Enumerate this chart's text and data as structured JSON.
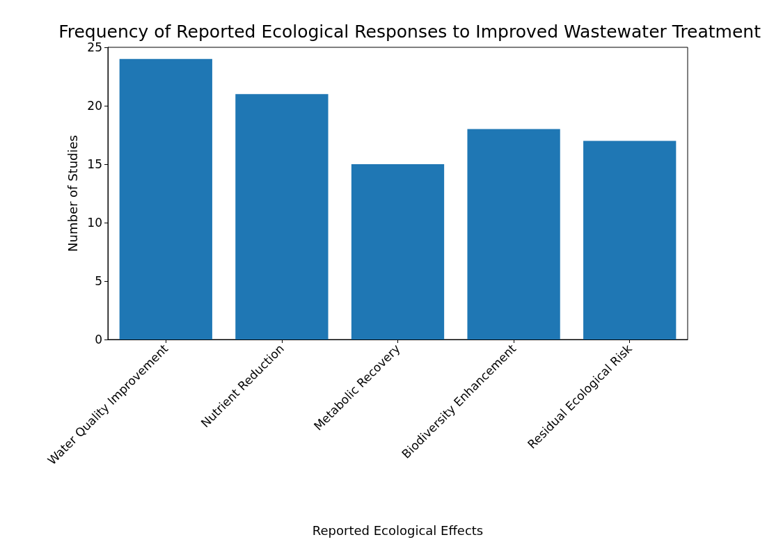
{
  "chart_data": {
    "type": "bar",
    "title": "Frequency of Reported Ecological Responses to Improved Wastewater Treatment",
    "xlabel": "Reported Ecological Effects",
    "ylabel": "Number of Studies",
    "categories": [
      "Water Quality Improvement",
      "Nutrient Reduction",
      "Metabolic Recovery",
      "Biodiversity Enhancement",
      "Residual Ecological Risk"
    ],
    "values": [
      24,
      21,
      15,
      18,
      17
    ],
    "color": "#1f77b4",
    "ylim": [
      0,
      25
    ],
    "yticks": [
      0,
      5,
      10,
      15,
      20,
      25
    ],
    "grid": false
  }
}
